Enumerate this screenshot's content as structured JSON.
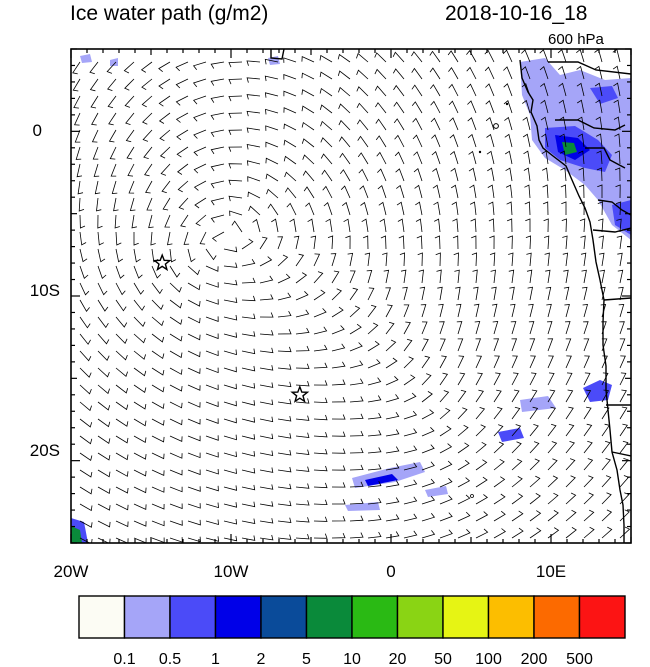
{
  "header": {
    "title": "Ice water path (g/m2)",
    "datetime": "2018-10-16_18",
    "level": "600 hPa"
  },
  "map": {
    "lon_range": [
      -20,
      15
    ],
    "lat_range": [
      -25,
      5
    ],
    "x_ticks": [
      {
        "value": -20,
        "label": "20W"
      },
      {
        "value": -10,
        "label": "10W"
      },
      {
        "value": 0,
        "label": "0"
      },
      {
        "value": 10,
        "label": "10E"
      }
    ],
    "y_ticks": [
      {
        "value": 0,
        "label": "0"
      },
      {
        "value": -10,
        "label": "10S"
      },
      {
        "value": -20,
        "label": "20S"
      }
    ],
    "markers": [
      {
        "type": "star",
        "lon": -14.3,
        "lat": -8.0
      },
      {
        "type": "star",
        "lon": -5.7,
        "lat": -16.0
      }
    ]
  },
  "colorbar": {
    "labels": [
      "0.1",
      "0.5",
      "1",
      "2",
      "5",
      "10",
      "20",
      "50",
      "100",
      "200",
      "500"
    ],
    "colors": [
      "#fcfcf4",
      "#a5a5f8",
      "#4b4bf8",
      "#0000e8",
      "#0a4b9a",
      "#0a8a3a",
      "#2aba14",
      "#8ad414",
      "#e6f414",
      "#fcbe00",
      "#fc6a00",
      "#fc1414"
    ]
  }
}
